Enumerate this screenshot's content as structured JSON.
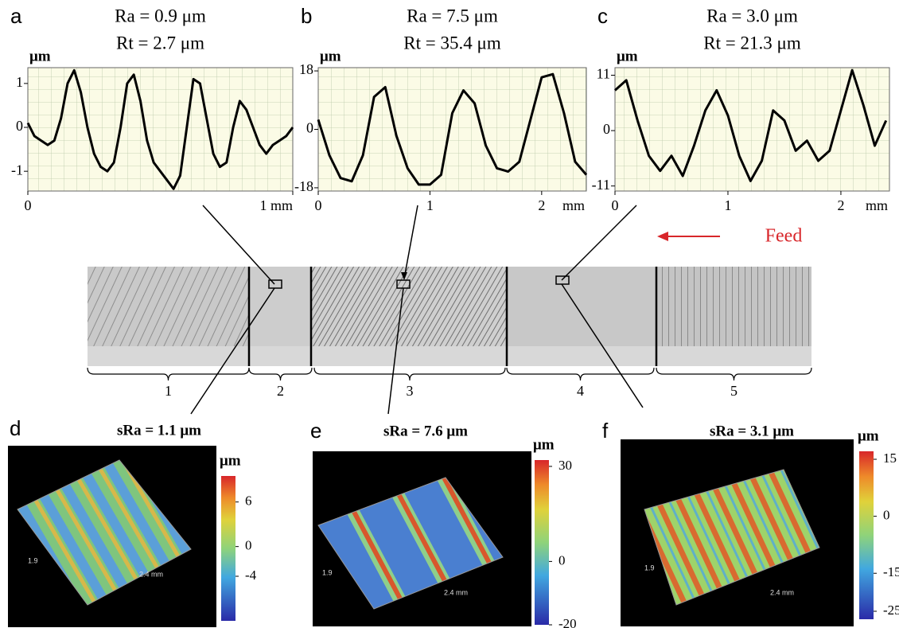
{
  "chart_data": [
    {
      "type": "line",
      "panel_label": "a",
      "title": "Ra = 0.9 μm",
      "subtitle": "Rt = 2.7 μm",
      "y_label": "μm",
      "x": [
        0,
        0.025,
        0.05,
        0.075,
        0.1,
        0.125,
        0.15,
        0.175,
        0.2,
        0.225,
        0.25,
        0.275,
        0.3,
        0.325,
        0.35,
        0.375,
        0.4,
        0.425,
        0.45,
        0.475,
        0.5,
        0.525,
        0.55,
        0.575,
        0.6,
        0.625,
        0.65,
        0.675,
        0.7,
        0.725,
        0.75,
        0.775,
        0.8,
        0.825,
        0.85,
        0.875,
        0.9,
        0.925,
        0.95,
        0.975,
        1
      ],
      "values": [
        0.1,
        -0.2,
        -0.3,
        -0.4,
        -0.3,
        0.2,
        1.0,
        1.3,
        0.8,
        0.0,
        -0.6,
        -0.9,
        -1.0,
        -0.8,
        0.0,
        1.0,
        1.2,
        0.6,
        -0.3,
        -0.8,
        -1.0,
        -1.2,
        -1.4,
        -1.1,
        0.0,
        1.1,
        1.0,
        0.2,
        -0.6,
        -0.9,
        -0.8,
        0.0,
        0.6,
        0.4,
        0.0,
        -0.4,
        -0.6,
        -0.4,
        -0.3,
        -0.2,
        0.0
      ],
      "xlim": [
        0,
        1
      ],
      "ylim": [
        -1.45,
        1.36
      ],
      "yticks": [
        1,
        0,
        -1
      ],
      "xticks": [
        0,
        {
          "value": 1,
          "label": "1 mm"
        }
      ]
    },
    {
      "type": "line",
      "panel_label": "b",
      "title": "Ra = 7.5 μm",
      "subtitle": "Rt = 35.4 μm",
      "y_label": "μm",
      "x_unit": "mm",
      "x": [
        0,
        0.1,
        0.2,
        0.3,
        0.4,
        0.5,
        0.6,
        0.7,
        0.8,
        0.9,
        1.0,
        1.1,
        1.2,
        1.3,
        1.4,
        1.5,
        1.6,
        1.7,
        1.8,
        1.9,
        2.0,
        2.1,
        2.2,
        2.3,
        2.4
      ],
      "values": [
        3,
        -8,
        -15,
        -16,
        -8,
        10,
        13,
        -2,
        -12,
        -17,
        -17,
        -14,
        5,
        12,
        8,
        -5,
        -12,
        -13,
        -10,
        3,
        16,
        17,
        5,
        -10,
        -14
      ],
      "xlim": [
        0,
        2.4
      ],
      "ylim": [
        -19,
        19
      ],
      "yticks": [
        18,
        0,
        -18
      ],
      "xticks": [
        0,
        1,
        2
      ]
    },
    {
      "type": "line",
      "panel_label": "c",
      "title": "Ra = 3.0 μm",
      "subtitle": "Rt = 21.3 μm",
      "y_label": "μm",
      "x_unit": "mm",
      "x": [
        0,
        0.1,
        0.2,
        0.3,
        0.4,
        0.5,
        0.6,
        0.7,
        0.8,
        0.9,
        1.0,
        1.1,
        1.2,
        1.3,
        1.4,
        1.5,
        1.6,
        1.7,
        1.8,
        1.9,
        2.0,
        2.1,
        2.2,
        2.3,
        2.4
      ],
      "values": [
        8,
        10,
        2,
        -5,
        -8,
        -5,
        -9,
        -3,
        4,
        8,
        3,
        -5,
        -10,
        -6,
        4,
        2,
        -4,
        -2,
        -6,
        -4,
        4,
        12,
        5,
        -3,
        2
      ],
      "xlim": [
        0,
        2.43
      ],
      "ylim": [
        -12,
        12.5
      ],
      "yticks": [
        11,
        0,
        -11
      ],
      "xticks": [
        0,
        1,
        2
      ]
    }
  ],
  "specimen": {
    "feed": "Feed",
    "regions": [
      "1",
      "2",
      "3",
      "4",
      "5"
    ]
  },
  "surfaces": [
    {
      "panel_label": "d",
      "title": "sRa = 1.1 μm",
      "unit": "μm",
      "depth_label": "1.9",
      "width_label": "2.4 mm",
      "colorbar_lim": [
        -10,
        9.5
      ],
      "colorbar_ticks": [
        6,
        0,
        -4
      ]
    },
    {
      "panel_label": "e",
      "title": "sRa = 7.6 μm",
      "unit": "μm",
      "depth_label": "1.9",
      "width_label": "2.4 mm",
      "colorbar_lim": [
        -20,
        32
      ],
      "colorbar_ticks": [
        30,
        0,
        -20
      ]
    },
    {
      "panel_label": "f",
      "title": "sRa = 3.1 μm",
      "unit": "μm",
      "depth_label": "1.9",
      "width_label": "2.4 mm",
      "colorbar_lim": [
        -27.1,
        17.1
      ],
      "colorbar_ticks": [
        15,
        0,
        -15,
        -25
      ]
    }
  ]
}
